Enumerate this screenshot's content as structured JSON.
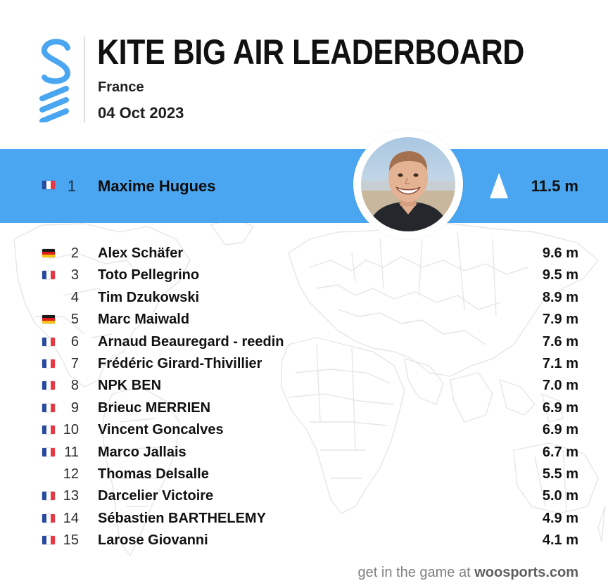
{
  "header": {
    "title": "KITE BIG AIR LEADERBOARD",
    "location": "France",
    "date": "04 Oct 2023",
    "logo_icon": "woo-logo-icon"
  },
  "colors": {
    "accent": "#4aa6f0",
    "logo": "#4aa6f0",
    "text": "#111111",
    "footer_text": "#7f7f7f",
    "map_lines": "#e6e6e6"
  },
  "leader": {
    "rank": "1",
    "flag": "fr",
    "name": "Maxime Hugues",
    "value": "11.5 m",
    "trend_icon": "up-arrow-icon",
    "avatar_icon": "rider-avatar-photo"
  },
  "entries": [
    {
      "rank": "2",
      "flag": "de",
      "name": "Alex Schäfer",
      "value": "9.6 m"
    },
    {
      "rank": "3",
      "flag": "fr",
      "name": "Toto Pellegrino",
      "value": "9.5 m"
    },
    {
      "rank": "4",
      "flag": "none",
      "name": "Tim Dzukowski",
      "value": "8.9 m"
    },
    {
      "rank": "5",
      "flag": "de",
      "name": "Marc Maiwald",
      "value": "7.9 m"
    },
    {
      "rank": "6",
      "flag": "fr",
      "name": "Arnaud Beauregard - reedin",
      "value": "7.6 m"
    },
    {
      "rank": "7",
      "flag": "fr",
      "name": "Frédéric Girard-Thivillier",
      "value": "7.1 m"
    },
    {
      "rank": "8",
      "flag": "fr",
      "name": "NPK BEN",
      "value": "7.0 m"
    },
    {
      "rank": "9",
      "flag": "fr",
      "name": "Brieuc MERRIEN",
      "value": "6.9 m"
    },
    {
      "rank": "10",
      "flag": "fr",
      "name": "Vincent Goncalves",
      "value": "6.9 m"
    },
    {
      "rank": "11",
      "flag": "fr",
      "name": "Marco Jallais",
      "value": "6.7 m"
    },
    {
      "rank": "12",
      "flag": "none",
      "name": "Thomas Delsalle",
      "value": "5.5 m"
    },
    {
      "rank": "13",
      "flag": "fr",
      "name": "Darcelier Victoire",
      "value": "5.0 m"
    },
    {
      "rank": "14",
      "flag": "fr",
      "name": "Sébastien BARTHELEMY",
      "value": "4.9 m"
    },
    {
      "rank": "15",
      "flag": "fr",
      "name": "Larose Giovanni",
      "value": "4.1 m"
    }
  ],
  "footer": {
    "prefix": "get in the game at ",
    "brand": "woosports.com"
  }
}
